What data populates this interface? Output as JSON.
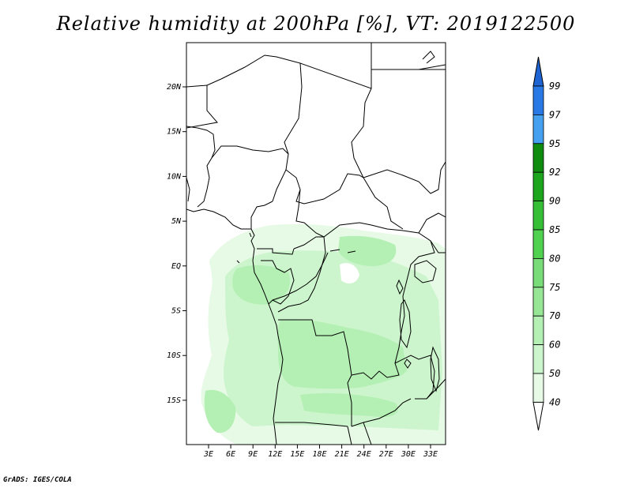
{
  "title": "Relative humidity at 200hPa [%], VT: 2019122500",
  "credit": "GrADS: IGES/COLA",
  "map": {
    "lat_labels": [
      "20N",
      "15N",
      "10N",
      "5N",
      "EQ",
      "5S",
      "10S",
      "15S"
    ],
    "lon_labels": [
      "3E",
      "6E",
      "9E",
      "12E",
      "15E",
      "18E",
      "21E",
      "24E",
      "27E",
      "30E",
      "33E"
    ]
  },
  "colorbar": {
    "levels": [
      "99",
      "97",
      "95",
      "92",
      "90",
      "85",
      "80",
      "75",
      "70",
      "60",
      "50",
      "40"
    ],
    "colors": {
      "above_99": "#1e64d2",
      "97_99": "#2878e6",
      "95_97": "#46a0f0",
      "92_95": "#0f8c0f",
      "90_92": "#1ea51e",
      "85_90": "#37be37",
      "80_85": "#50d250",
      "75_80": "#78dc78",
      "70_75": "#96e696",
      "60_70": "#b4f0b4",
      "50_60": "#cdf5cd",
      "40_50": "#e6fae6",
      "below_40": "#ffffff"
    }
  },
  "fill_colors": {
    "light": "#e6fae6",
    "medium": "#cdf5cd",
    "strong": "#b4f0b4"
  }
}
